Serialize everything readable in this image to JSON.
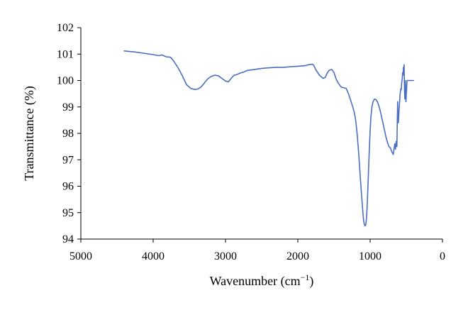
{
  "chart_data": {
    "type": "line",
    "title": "",
    "xlabel": "Wavenumber (cm",
    "xlabel_sup": "−1",
    "xlabel_close": ")",
    "ylabel": "Transmittance (%)",
    "xlim": [
      5000,
      0
    ],
    "ylim": [
      94,
      102
    ],
    "x_reversed": true,
    "x_ticks": [
      5000,
      4000,
      3000,
      2000,
      1000,
      0
    ],
    "y_ticks": [
      94,
      95,
      96,
      97,
      98,
      99,
      100,
      101,
      102
    ],
    "grid": false,
    "legend": "none",
    "line_color": "#4a6fc2",
    "series": [
      {
        "x": [
          4400,
          4250,
          4100,
          4000,
          3920,
          3880,
          3820,
          3760,
          3720,
          3660,
          3600,
          3540,
          3480,
          3420,
          3380,
          3340,
          3300,
          3250,
          3200,
          3150,
          3100,
          3050,
          3000,
          2960,
          2930,
          2900,
          2880,
          2850,
          2800,
          2750,
          2700,
          2600,
          2500,
          2400,
          2300,
          2200,
          2100,
          2000,
          1900,
          1850,
          1800,
          1780,
          1750,
          1700,
          1680,
          1650,
          1620,
          1600,
          1570,
          1530,
          1500,
          1470,
          1440,
          1400,
          1360,
          1330,
          1300,
          1270,
          1240,
          1220,
          1200,
          1180,
          1160,
          1140,
          1120,
          1100,
          1090,
          1080,
          1070,
          1060,
          1050,
          1040,
          1030,
          1020,
          1010,
          1000,
          990,
          975,
          960,
          940,
          920,
          900,
          880,
          860,
          840,
          820,
          800,
          780,
          760,
          740,
          720,
          700,
          680,
          660,
          650,
          640,
          630,
          620,
          615,
          610,
          600,
          595,
          590,
          585,
          580,
          575,
          570,
          565,
          560,
          555,
          550,
          545,
          540,
          535,
          530,
          525,
          520,
          515,
          510,
          505,
          500,
          495,
          490,
          480,
          470,
          450,
          420,
          400
        ],
        "y": [
          101.12,
          101.08,
          101.02,
          100.98,
          100.94,
          100.97,
          100.9,
          100.88,
          100.75,
          100.5,
          100.2,
          99.85,
          99.7,
          99.66,
          99.68,
          99.75,
          99.88,
          100.05,
          100.15,
          100.2,
          100.18,
          100.08,
          99.98,
          99.95,
          100.05,
          100.15,
          100.2,
          100.22,
          100.28,
          100.32,
          100.38,
          100.42,
          100.46,
          100.48,
          100.5,
          100.5,
          100.52,
          100.54,
          100.56,
          100.6,
          100.62,
          100.58,
          100.4,
          100.2,
          100.15,
          100.08,
          100.12,
          100.25,
          100.38,
          100.42,
          100.3,
          100.05,
          99.9,
          99.75,
          99.72,
          99.7,
          99.5,
          99.25,
          99.0,
          98.8,
          98.5,
          98.0,
          97.3,
          96.5,
          95.7,
          95.0,
          94.7,
          94.55,
          94.5,
          94.55,
          94.8,
          95.3,
          96.0,
          96.8,
          97.5,
          98.1,
          98.6,
          99.0,
          99.2,
          99.3,
          99.28,
          99.2,
          99.05,
          98.85,
          98.6,
          98.35,
          98.1,
          97.85,
          97.65,
          97.5,
          97.45,
          97.3,
          97.2,
          97.6,
          97.4,
          97.7,
          97.5,
          99.2,
          98.6,
          98.4,
          98.9,
          99.1,
          99.3,
          99.5,
          99.6,
          99.7,
          99.65,
          99.9,
          100.0,
          100.1,
          100.3,
          100.2,
          100.5,
          100.35,
          100.6,
          99.6,
          99.3,
          100.0,
          99.8,
          99.2,
          99.5,
          99.7,
          100.0,
          100.0,
          100.0,
          100.0,
          100.0,
          100.0
        ]
      }
    ]
  }
}
